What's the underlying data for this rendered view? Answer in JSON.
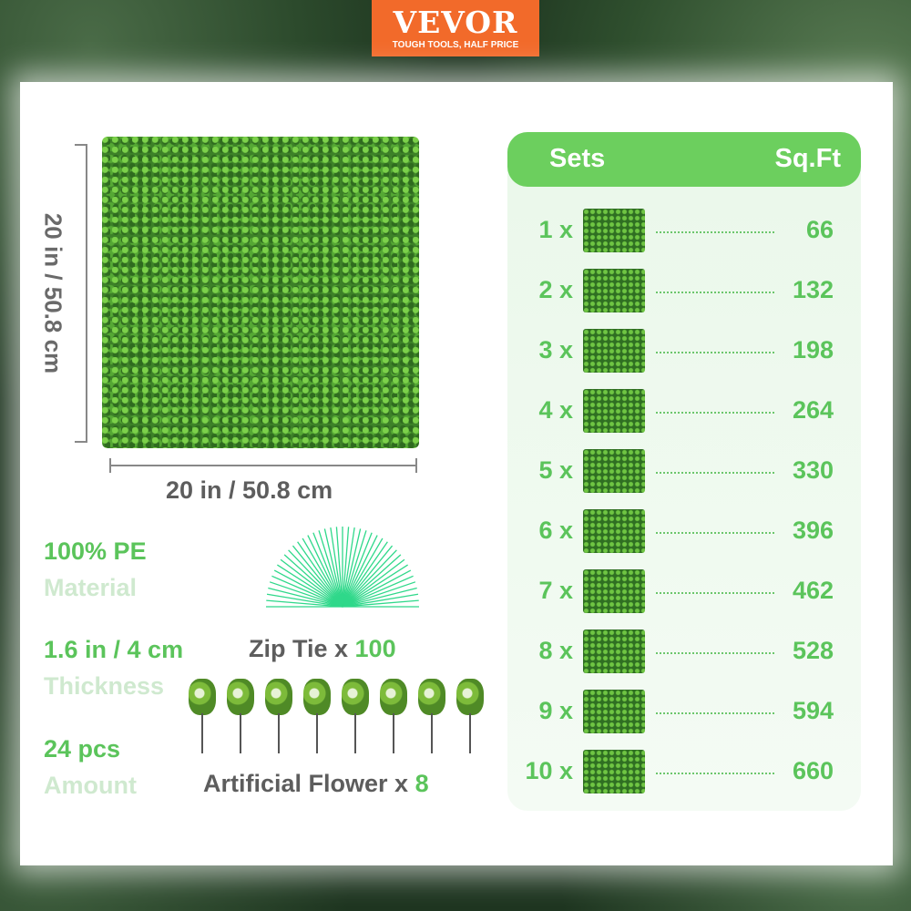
{
  "brand": {
    "name": "VEVOR",
    "tagline": "TOUGH TOOLS, HALF PRICE",
    "color": "#f26a2a"
  },
  "dimensions": {
    "height": "20 in / 50.8 cm",
    "width": "20 in / 50.8 cm"
  },
  "specs": [
    {
      "value": "100% PE",
      "label": "Material"
    },
    {
      "value": "1.6 in / 4 cm",
      "label": "Thickness"
    },
    {
      "value": "24 pcs",
      "label": "Amount"
    }
  ],
  "accessories": {
    "zip_tie": {
      "label": "Zip Tie x ",
      "count": "100"
    },
    "flower": {
      "label": "Artificial Flower x ",
      "count": "8"
    }
  },
  "table": {
    "header_sets": "Sets",
    "header_sqft": "Sq.Ft",
    "rows": [
      {
        "sets": "1 x",
        "sqft": "66"
      },
      {
        "sets": "2 x",
        "sqft": "132"
      },
      {
        "sets": "3 x",
        "sqft": "198"
      },
      {
        "sets": "4 x",
        "sqft": "264"
      },
      {
        "sets": "5 x",
        "sqft": "330"
      },
      {
        "sets": "6 x",
        "sqft": "396"
      },
      {
        "sets": "7 x",
        "sqft": "462"
      },
      {
        "sets": "8 x",
        "sqft": "528"
      },
      {
        "sets": "9 x",
        "sqft": "594"
      },
      {
        "sets": "10 x",
        "sqft": "660"
      }
    ]
  },
  "colors": {
    "accent": "#5bc45b",
    "header": "#6ccf5e",
    "pale": "#cfe9cf"
  }
}
